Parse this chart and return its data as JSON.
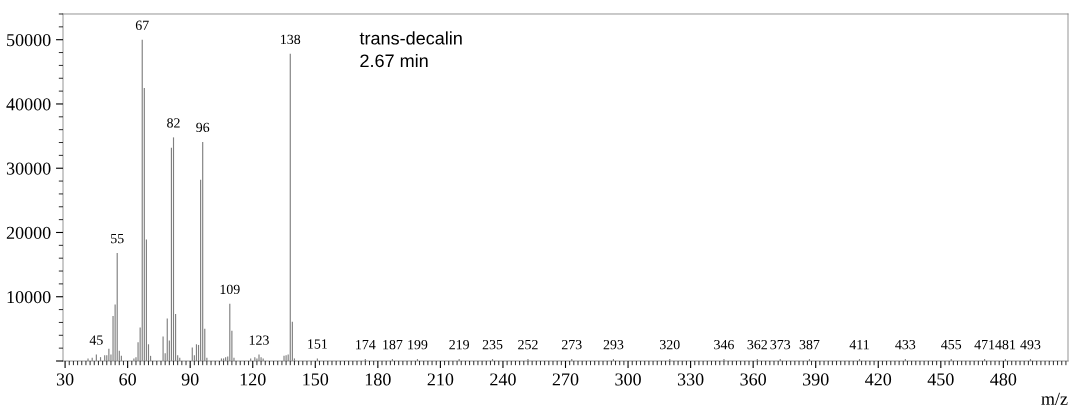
{
  "chart_data": {
    "type": "bar",
    "xlabel": "m/z",
    "color": "#7f7f7f",
    "x": [
      41,
      43,
      45,
      47,
      49,
      50,
      51,
      52,
      53,
      54,
      55,
      56,
      57,
      63,
      64,
      65,
      66,
      67,
      68,
      69,
      70,
      71,
      77,
      78,
      79,
      80,
      81,
      82,
      83,
      84,
      85,
      91,
      92,
      93,
      94,
      95,
      96,
      97,
      98,
      105,
      106,
      107,
      108,
      109,
      110,
      111,
      119,
      121,
      122,
      123,
      124,
      125,
      135,
      136,
      137,
      138,
      139,
      140,
      151,
      174,
      187,
      199,
      219,
      235,
      252,
      273,
      293,
      320,
      346,
      362,
      373,
      387,
      411,
      433,
      455,
      471,
      481,
      493
    ],
    "values": [
      400,
      500,
      1000,
      600,
      900,
      900,
      1900,
      1000,
      7000,
      8800,
      16800,
      1600,
      800,
      400,
      600,
      2900,
      5200,
      50000,
      42500,
      18900,
      2600,
      800,
      3800,
      1200,
      6600,
      3200,
      33200,
      34800,
      7300,
      900,
      500,
      2100,
      900,
      2600,
      2500,
      28200,
      34100,
      5000,
      500,
      400,
      400,
      600,
      700,
      8900,
      4700,
      500,
      400,
      600,
      400,
      1000,
      600,
      400,
      800,
      900,
      1000,
      47800,
      6100,
      400,
      400,
      300,
      300,
      300,
      300,
      300,
      300,
      300,
      300,
      300,
      300,
      300,
      300,
      300,
      300,
      300,
      300,
      300,
      300,
      300
    ],
    "xlim": [
      29,
      511
    ],
    "ylim": [
      0,
      54000
    ],
    "xticks": [
      30,
      60,
      90,
      120,
      150,
      180,
      210,
      240,
      270,
      300,
      330,
      360,
      390,
      420,
      450,
      480
    ],
    "yticks": [
      {
        "value": 0,
        "label": null
      },
      10000,
      20000,
      30000,
      40000,
      50000
    ],
    "grid": false,
    "legend": false,
    "annotations": [
      {
        "text": "45",
        "x": 45,
        "y": 1000
      },
      {
        "text": "55",
        "x": 55,
        "y": 16800
      },
      {
        "text": "67",
        "x": 67,
        "y": 50000
      },
      {
        "text": "82",
        "x": 82,
        "y": 34800
      },
      {
        "text": "96",
        "x": 96,
        "y": 34100
      },
      {
        "text": "109",
        "x": 109,
        "y": 8900
      },
      {
        "text": "123",
        "x": 123,
        "y": 1000
      },
      {
        "text": "138",
        "x": 138,
        "y": 47800
      },
      {
        "text": "151",
        "x": 151,
        "y": 400
      },
      {
        "text": "174",
        "x": 174,
        "y": 300
      },
      {
        "text": "187",
        "x": 187,
        "y": 300
      },
      {
        "text": "199",
        "x": 199,
        "y": 300
      },
      {
        "text": "219",
        "x": 219,
        "y": 300
      },
      {
        "text": "235",
        "x": 235,
        "y": 300
      },
      {
        "text": "252",
        "x": 252,
        "y": 300
      },
      {
        "text": "273",
        "x": 273,
        "y": 300
      },
      {
        "text": "293",
        "x": 293,
        "y": 300
      },
      {
        "text": "320",
        "x": 320,
        "y": 300
      },
      {
        "text": "346",
        "x": 346,
        "y": 300
      },
      {
        "text": "362",
        "x": 362,
        "y": 300
      },
      {
        "text": "373",
        "x": 373,
        "y": 300
      },
      {
        "text": "387",
        "x": 387,
        "y": 300
      },
      {
        "text": "411",
        "x": 411,
        "y": 300
      },
      {
        "text": "433",
        "x": 433,
        "y": 300
      },
      {
        "text": "455",
        "x": 455,
        "y": 300
      },
      {
        "text": "471",
        "x": 471,
        "y": 300
      },
      {
        "text": "481",
        "x": 481,
        "y": 300
      },
      {
        "text": "493",
        "x": 493,
        "y": 300
      },
      "trans-decalin",
      "2.67 min"
    ]
  }
}
